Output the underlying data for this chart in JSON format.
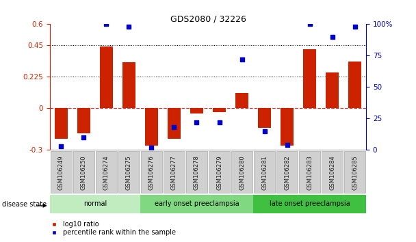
{
  "title": "GDS2080 / 32226",
  "samples": [
    "GSM106249",
    "GSM106250",
    "GSM106274",
    "GSM106275",
    "GSM106276",
    "GSM106277",
    "GSM106278",
    "GSM106279",
    "GSM106280",
    "GSM106281",
    "GSM106282",
    "GSM106283",
    "GSM106284",
    "GSM106285"
  ],
  "log10_ratio": [
    -0.22,
    -0.18,
    0.44,
    0.33,
    -0.27,
    -0.22,
    -0.04,
    -0.03,
    0.11,
    -0.14,
    -0.27,
    0.42,
    0.255,
    0.335
  ],
  "percentile_rank": [
    3,
    10,
    100,
    98,
    2,
    18,
    22,
    22,
    72,
    15,
    4,
    100,
    90,
    98
  ],
  "groups": [
    {
      "label": "normal",
      "start": 0,
      "end": 4,
      "color": "#c0ecc0"
    },
    {
      "label": "early onset preeclampsia",
      "start": 4,
      "end": 9,
      "color": "#80d880"
    },
    {
      "label": "late onset preeclampsia",
      "start": 9,
      "end": 14,
      "color": "#40c040"
    }
  ],
  "bar_color": "#cc2200",
  "dot_color": "#0000cc",
  "ylim_left": [
    -0.3,
    0.6
  ],
  "ylim_right": [
    0,
    100
  ],
  "yticks_left": [
    -0.3,
    0.0,
    0.225,
    0.45,
    0.6
  ],
  "ytick_labels_left": [
    "-0.3",
    "0",
    "0.225",
    "0.45",
    "0.6"
  ],
  "yticks_right": [
    0,
    25,
    50,
    75,
    100
  ],
  "ytick_labels_right": [
    "0",
    "25",
    "50",
    "75",
    "100%"
  ],
  "dotted_hlines": [
    0.45,
    0.225
  ],
  "zero_line_color": "#cc3333",
  "background_color": "#ffffff",
  "title_color": "#000000",
  "left_axis_color": "#cc2200",
  "right_axis_color": "#0000cc",
  "label_box_color": "#d0d0d0",
  "disease_state_label": "disease state",
  "legend_red": "log10 ratio",
  "legend_blue": "percentile rank within the sample"
}
